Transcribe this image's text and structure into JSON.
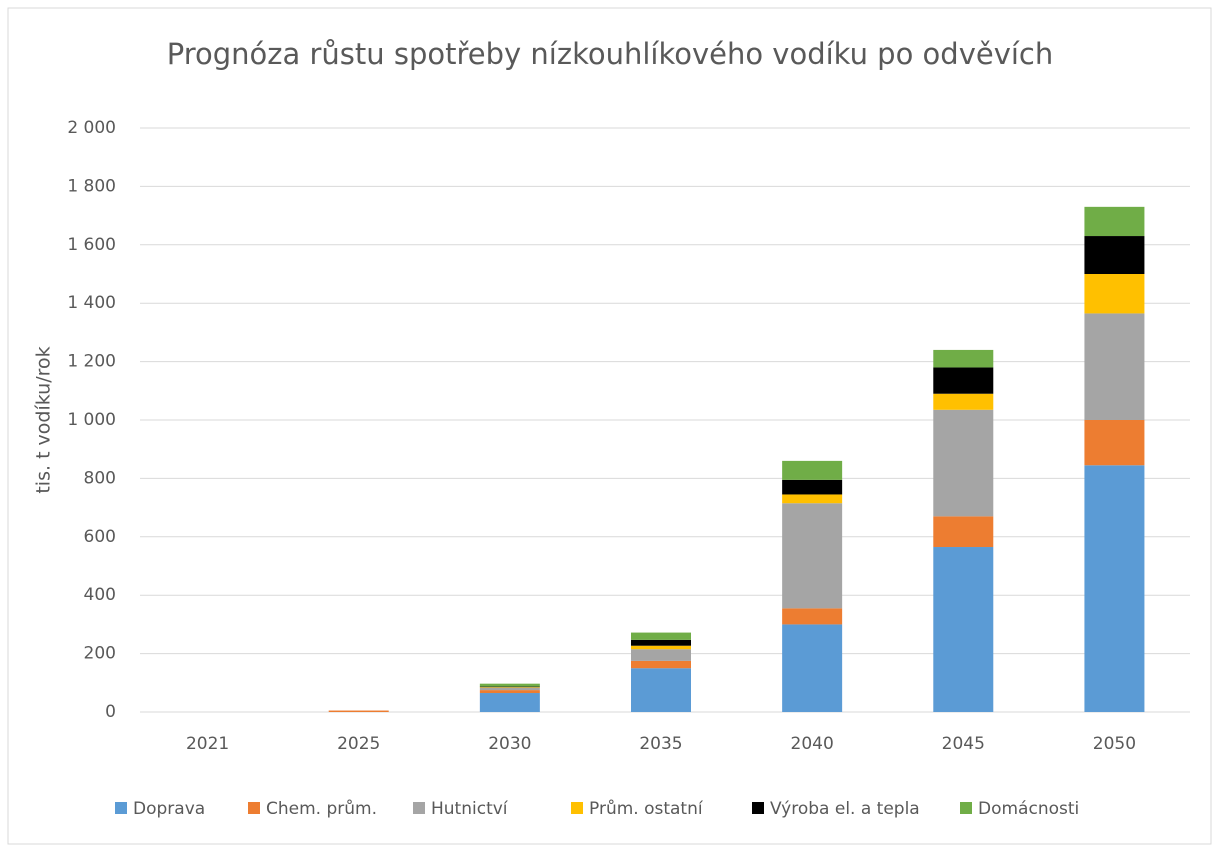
{
  "chart_data": {
    "type": "stacked_bar",
    "title": "Prognóza růstu spotřeby nízkouhlíkového vodíku po odvěvích",
    "ylabel": "tis. t vodíku/rok",
    "categories": [
      "2021",
      "2025",
      "2030",
      "2035",
      "2040",
      "2045",
      "2050"
    ],
    "series": [
      {
        "name": "Doprava",
        "color": "#5b9bd5",
        "values": [
          0,
          0,
          65,
          150,
          300,
          565,
          845
        ]
      },
      {
        "name": "Chem. prům.",
        "color": "#ed7d31",
        "values": [
          0,
          5,
          10,
          25,
          55,
          105,
          155
        ]
      },
      {
        "name": "Hutnictví",
        "color": "#a5a5a5",
        "values": [
          0,
          0,
          8,
          40,
          360,
          365,
          365
        ]
      },
      {
        "name": "Prům. ostatní",
        "color": "#ffc000",
        "values": [
          0,
          0,
          2,
          12,
          30,
          55,
          135
        ]
      },
      {
        "name": "Výroba el. a tepla",
        "color": "#000000",
        "values": [
          0,
          0,
          2,
          20,
          50,
          90,
          130
        ]
      },
      {
        "name": "Domácnosti",
        "color": "#70ad47",
        "values": [
          0,
          0,
          10,
          25,
          65,
          60,
          100
        ]
      }
    ],
    "ylim": [
      0,
      2000
    ],
    "yticks": [
      0,
      200,
      400,
      600,
      800,
      {
        "value": 1000,
        "label": "1 000"
      },
      {
        "value": 1200,
        "label": "1 200"
      },
      {
        "value": 1400,
        "label": "1 400"
      },
      {
        "value": 1600,
        "label": "1 600"
      },
      {
        "value": 1800,
        "label": "1 800"
      },
      {
        "value": 2000,
        "label": "2 000"
      }
    ],
    "grid": true,
    "legend": "bottom"
  }
}
